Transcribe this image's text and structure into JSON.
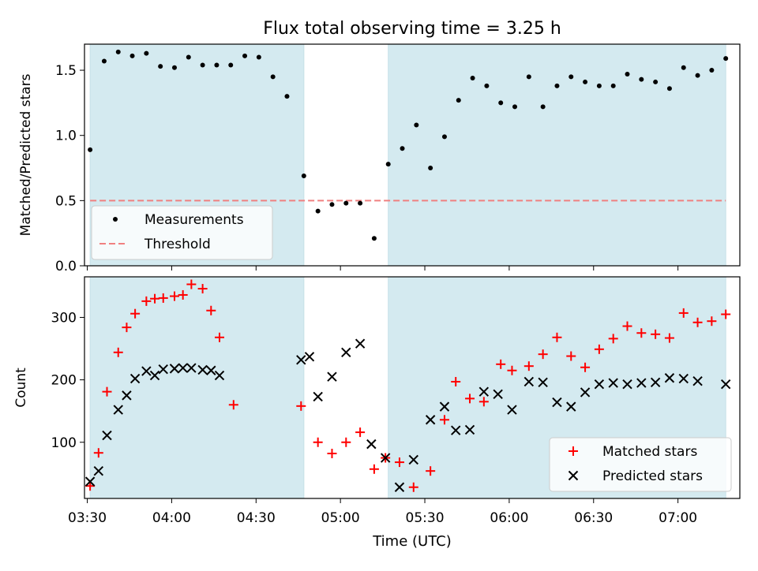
{
  "chart_data": {
    "title": "Flux total observing time = 3.25 h",
    "xlabel": "Time (UTC)",
    "x_unit": "time of day",
    "xlim": [
      "03:29",
      "07:22"
    ],
    "x_ticks": [
      "03:30",
      "04:00",
      "04:30",
      "05:00",
      "05:30",
      "06:00",
      "06:30",
      "07:00"
    ],
    "shaded_intervals": [
      {
        "start": "03:31",
        "end": "04:47",
        "color": "#d4eaf0"
      },
      {
        "start": "05:17",
        "end": "07:17",
        "color": "#d4eaf0"
      }
    ],
    "panels": [
      {
        "type": "scatter",
        "ylabel": "Matched/Predicted stars",
        "ylim": [
          0,
          1.7
        ],
        "y_ticks": [
          "0.0",
          "0.5",
          "1.0",
          "1.5"
        ],
        "threshold": {
          "name": "Threshold",
          "value": 0.5,
          "color": "#f08080",
          "style": "dashed"
        },
        "series": [
          {
            "name": "Measurements",
            "marker": "dot",
            "color": "#000000",
            "points": [
              [
                "03:31",
                0.89
              ],
              [
                "03:36",
                1.57
              ],
              [
                "03:41",
                1.64
              ],
              [
                "03:46",
                1.61
              ],
              [
                "03:51",
                1.63
              ],
              [
                "03:56",
                1.53
              ],
              [
                "04:01",
                1.52
              ],
              [
                "04:06",
                1.6
              ],
              [
                "04:11",
                1.54
              ],
              [
                "04:16",
                1.54
              ],
              [
                "04:21",
                1.54
              ],
              [
                "04:26",
                1.61
              ],
              [
                "04:31",
                1.6
              ],
              [
                "04:36",
                1.45
              ],
              [
                "04:41",
                1.3
              ],
              [
                "04:47",
                0.69
              ],
              [
                "04:52",
                0.42
              ],
              [
                "04:57",
                0.47
              ],
              [
                "05:02",
                0.48
              ],
              [
                "05:07",
                0.48
              ],
              [
                "05:12",
                0.21
              ],
              [
                "05:17",
                0.78
              ],
              [
                "05:22",
                0.9
              ],
              [
                "05:27",
                1.08
              ],
              [
                "05:32",
                0.75
              ],
              [
                "05:37",
                0.99
              ],
              [
                "05:42",
                1.27
              ],
              [
                "05:47",
                1.44
              ],
              [
                "05:52",
                1.38
              ],
              [
                "05:57",
                1.25
              ],
              [
                "06:02",
                1.22
              ],
              [
                "06:07",
                1.45
              ],
              [
                "06:12",
                1.22
              ],
              [
                "06:17",
                1.38
              ],
              [
                "06:22",
                1.45
              ],
              [
                "06:27",
                1.41
              ],
              [
                "06:32",
                1.38
              ],
              [
                "06:37",
                1.38
              ],
              [
                "06:42",
                1.47
              ],
              [
                "06:47",
                1.43
              ],
              [
                "06:52",
                1.41
              ],
              [
                "06:57",
                1.36
              ],
              [
                "07:02",
                1.52
              ],
              [
                "07:07",
                1.46
              ],
              [
                "07:12",
                1.5
              ],
              [
                "07:17",
                1.59
              ]
            ]
          }
        ],
        "legend": {
          "position": "lower-left",
          "entries": [
            "Measurements",
            "Threshold"
          ]
        }
      },
      {
        "type": "scatter",
        "ylabel": "Count",
        "ylim": [
          10,
          365
        ],
        "y_ticks": [
          "100",
          "200",
          "300"
        ],
        "series": [
          {
            "name": "Matched stars",
            "marker": "plus",
            "color": "#ff0000",
            "points": [
              [
                "03:31",
                30
              ],
              [
                "03:34",
                83
              ],
              [
                "03:37",
                181
              ],
              [
                "03:41",
                244
              ],
              [
                "03:44",
                284
              ],
              [
                "03:47",
                306
              ],
              [
                "03:51",
                326
              ],
              [
                "03:54",
                330
              ],
              [
                "03:57",
                331
              ],
              [
                "04:01",
                334
              ],
              [
                "04:04",
                336
              ],
              [
                "04:07",
                353
              ],
              [
                "04:11",
                346
              ],
              [
                "04:14",
                311
              ],
              [
                "04:17",
                268
              ],
              [
                "04:22",
                160
              ],
              [
                "04:46",
                158
              ],
              [
                "04:52",
                100
              ],
              [
                "04:57",
                82
              ],
              [
                "05:02",
                100
              ],
              [
                "05:07",
                116
              ],
              [
                "05:12",
                57
              ],
              [
                "05:16",
                75
              ],
              [
                "05:21",
                68
              ],
              [
                "05:26",
                28
              ],
              [
                "05:32",
                54
              ],
              [
                "05:37",
                136
              ],
              [
                "05:41",
                197
              ],
              [
                "05:46",
                170
              ],
              [
                "05:51",
                165
              ],
              [
                "05:57",
                225
              ],
              [
                "06:01",
                215
              ],
              [
                "06:07",
                222
              ],
              [
                "06:12",
                241
              ],
              [
                "06:17",
                268
              ],
              [
                "06:22",
                238
              ],
              [
                "06:27",
                220
              ],
              [
                "06:32",
                249
              ],
              [
                "06:37",
                266
              ],
              [
                "06:42",
                286
              ],
              [
                "06:47",
                275
              ],
              [
                "06:52",
                273
              ],
              [
                "06:57",
                267
              ],
              [
                "07:02",
                307
              ],
              [
                "07:07",
                292
              ],
              [
                "07:12",
                294
              ],
              [
                "07:17",
                305
              ]
            ]
          },
          {
            "name": "Predicted stars",
            "marker": "x",
            "color": "#000000",
            "points": [
              [
                "03:31",
                37
              ],
              [
                "03:34",
                54
              ],
              [
                "03:37",
                111
              ],
              [
                "03:41",
                152
              ],
              [
                "03:44",
                175
              ],
              [
                "03:47",
                202
              ],
              [
                "03:51",
                214
              ],
              [
                "03:54",
                207
              ],
              [
                "03:57",
                217
              ],
              [
                "04:01",
                218
              ],
              [
                "04:04",
                219
              ],
              [
                "04:07",
                219
              ],
              [
                "04:11",
                216
              ],
              [
                "04:14",
                215
              ],
              [
                "04:17",
                207
              ],
              [
                "04:46",
                232
              ],
              [
                "04:49",
                237
              ],
              [
                "04:52",
                173
              ],
              [
                "04:57",
                205
              ],
              [
                "05:02",
                244
              ],
              [
                "05:07",
                258
              ],
              [
                "05:11",
                97
              ],
              [
                "05:16",
                75
              ],
              [
                "05:21",
                28
              ],
              [
                "05:26",
                72
              ],
              [
                "05:32",
                136
              ],
              [
                "05:37",
                157
              ],
              [
                "05:41",
                119
              ],
              [
                "05:46",
                120
              ],
              [
                "05:51",
                181
              ],
              [
                "05:56",
                177
              ],
              [
                "06:01",
                152
              ],
              [
                "06:07",
                197
              ],
              [
                "06:12",
                196
              ],
              [
                "06:17",
                164
              ],
              [
                "06:22",
                157
              ],
              [
                "06:27",
                180
              ],
              [
                "06:32",
                193
              ],
              [
                "06:37",
                195
              ],
              [
                "06:42",
                193
              ],
              [
                "06:47",
                195
              ],
              [
                "06:52",
                196
              ],
              [
                "06:57",
                203
              ],
              [
                "07:02",
                202
              ],
              [
                "07:07",
                198
              ],
              [
                "07:17",
                193
              ]
            ]
          }
        ],
        "legend": {
          "position": "lower-right",
          "entries": [
            "Matched stars",
            "Predicted stars"
          ]
        }
      }
    ]
  }
}
